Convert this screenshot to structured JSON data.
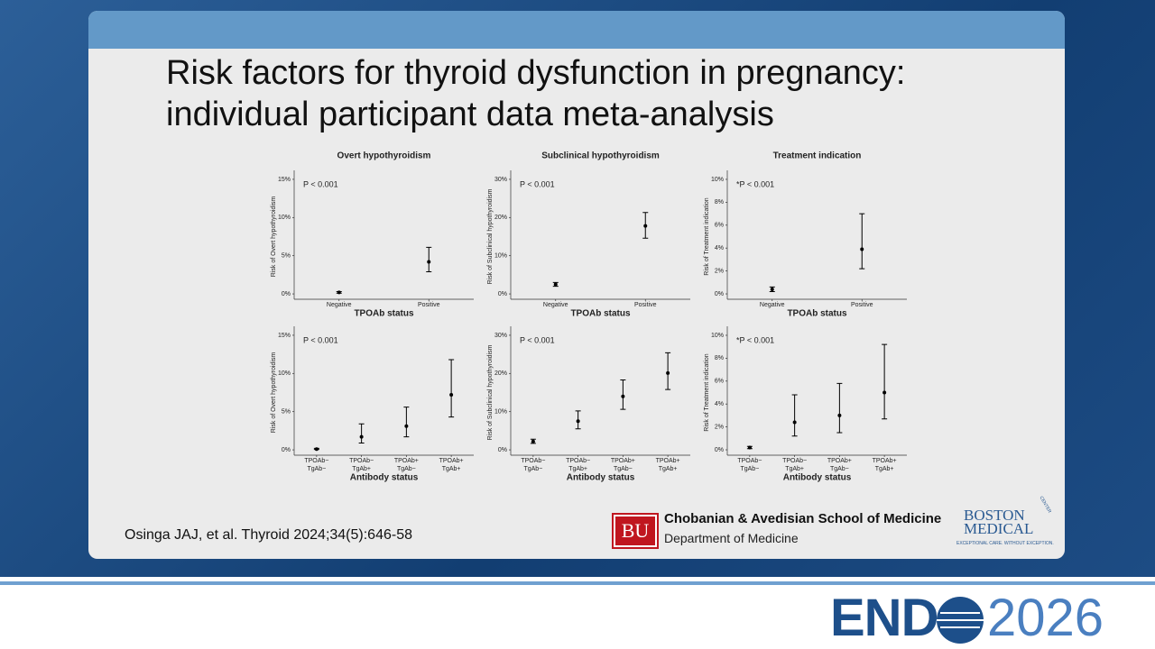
{
  "slide": {
    "title": [
      "Risk factors for thyroid dysfunction in pregnancy:",
      "individual participant data meta-analysis"
    ],
    "citation": "Osinga JAJ, et al. Thyroid 2024;34(5):646-58",
    "bu_logo": "BU",
    "school": "Chobanian & Avedisian School of Medicine",
    "department": "Department of Medicine",
    "bmc_top": "BOSTON",
    "bmc_bottom": "MEDICAL",
    "bmc_center": "CENTER",
    "bmc_tagline": "EXCEPTIONAL CARE. WITHOUT EXCEPTION.",
    "endo_left": "END",
    "endo_right": "2026"
  },
  "chart_data": [
    {
      "type": "errorbar",
      "title": "Overt hypothyroidism",
      "xlabel": "TPOAb status",
      "ylabel": "Risk of Overt hypothyroidism",
      "annotation": "P < 0.001",
      "categories": [
        "Negative",
        "Positive"
      ],
      "values": [
        0.2,
        4.2
      ],
      "lower": [
        0.1,
        2.9
      ],
      "upper": [
        0.3,
        6.1
      ],
      "color": "#000000",
      "ylim": [
        -0.7,
        15.7
      ],
      "yticks": [
        {
          "value": 0,
          "label": "0%"
        },
        {
          "value": 5,
          "label": "5%"
        },
        {
          "value": 10,
          "label": "10%"
        },
        {
          "value": 15,
          "label": "15%"
        }
      ]
    },
    {
      "type": "errorbar",
      "title": "Subclinical hypothyroidism",
      "xlabel": "TPOAb status",
      "ylabel": "Risk of Subclinical hypothyroidism",
      "annotation": "P < 0.001",
      "categories": [
        "Negative",
        "Positive"
      ],
      "values": [
        2.5,
        17.8
      ],
      "lower": [
        2.0,
        14.6
      ],
      "upper": [
        3.0,
        21.3
      ],
      "color": "#000000",
      "ylim": [
        -1.4,
        31.4
      ],
      "yticks": [
        {
          "value": 0,
          "label": "0%"
        },
        {
          "value": 10,
          "label": "10%"
        },
        {
          "value": 20,
          "label": "20%"
        },
        {
          "value": 30,
          "label": "30%"
        }
      ]
    },
    {
      "type": "errorbar",
      "title": "Treatment indication",
      "xlabel": "TPOAb status",
      "ylabel": "Risk of Treatment indication",
      "annotation": "*P < 0.001",
      "categories": [
        "Negative",
        "Positive"
      ],
      "values": [
        0.4,
        3.9
      ],
      "lower": [
        0.2,
        2.2
      ],
      "upper": [
        0.6,
        7.0
      ],
      "color": "#000000",
      "ylim": [
        -0.47,
        10.47
      ],
      "yticks": [
        {
          "value": 0,
          "label": "0%"
        },
        {
          "value": 2,
          "label": "2%"
        },
        {
          "value": 4,
          "label": "4%"
        },
        {
          "value": 6,
          "label": "6%"
        },
        {
          "value": 8,
          "label": "8%"
        },
        {
          "value": 10,
          "label": "10%"
        }
      ]
    },
    {
      "type": "errorbar",
      "xlabel": "Antibody status",
      "ylabel": "Risk of Overt hypothyroidism",
      "annotation": "P < 0.001",
      "categories": [
        "TPOAb−\nTgAb−",
        "TPOAb−\nTgAb+",
        "TPOAb+\nTgAb−",
        "TPOAb+\nTgAb+"
      ],
      "values": [
        0.1,
        1.7,
        3.1,
        7.2
      ],
      "lower": [
        0.05,
        0.9,
        1.7,
        4.3
      ],
      "upper": [
        0.2,
        3.4,
        5.6,
        11.8
      ],
      "color": "#000000",
      "ylim": [
        -0.7,
        15.7
      ],
      "yticks": [
        {
          "value": 0,
          "label": "0%"
        },
        {
          "value": 5,
          "label": "5%"
        },
        {
          "value": 10,
          "label": "10%"
        },
        {
          "value": 15,
          "label": "15%"
        }
      ]
    },
    {
      "type": "errorbar",
      "xlabel": "Antibody status",
      "ylabel": "Risk of Subclinical hypothyroidism",
      "annotation": "P < 0.001",
      "categories": [
        "TPOAb−\nTgAb−",
        "TPOAb−\nTgAb+",
        "TPOAb+\nTgAb−",
        "TPOAb+\nTgAb+"
      ],
      "values": [
        2.2,
        7.5,
        14.0,
        20.1
      ],
      "lower": [
        1.7,
        5.5,
        10.6,
        15.8
      ],
      "upper": [
        2.8,
        10.2,
        18.3,
        25.4
      ],
      "color": "#000000",
      "ylim": [
        -1.4,
        31.4
      ],
      "yticks": [
        {
          "value": 0,
          "label": "0%"
        },
        {
          "value": 10,
          "label": "10%"
        },
        {
          "value": 20,
          "label": "20%"
        },
        {
          "value": 30,
          "label": "30%"
        }
      ]
    },
    {
      "type": "errorbar",
      "xlabel": "Antibody status",
      "ylabel": "Risk of Treatment indication",
      "annotation": "*P < 0.001",
      "categories": [
        "TPOAb−\nTgAb−",
        "TPOAb−\nTgAb+",
        "TPOAb+\nTgAb−",
        "TPOAb+\nTgAb+"
      ],
      "values": [
        0.2,
        2.4,
        3.0,
        5.0
      ],
      "lower": [
        0.1,
        1.2,
        1.5,
        2.7
      ],
      "upper": [
        0.3,
        4.8,
        5.8,
        9.2
      ],
      "color": "#000000",
      "ylim": [
        -0.47,
        10.47
      ],
      "yticks": [
        {
          "value": 0,
          "label": "0%"
        },
        {
          "value": 2,
          "label": "2%"
        },
        {
          "value": 4,
          "label": "4%"
        },
        {
          "value": 6,
          "label": "6%"
        },
        {
          "value": 8,
          "label": "8%"
        },
        {
          "value": 10,
          "label": "10%"
        }
      ]
    }
  ]
}
